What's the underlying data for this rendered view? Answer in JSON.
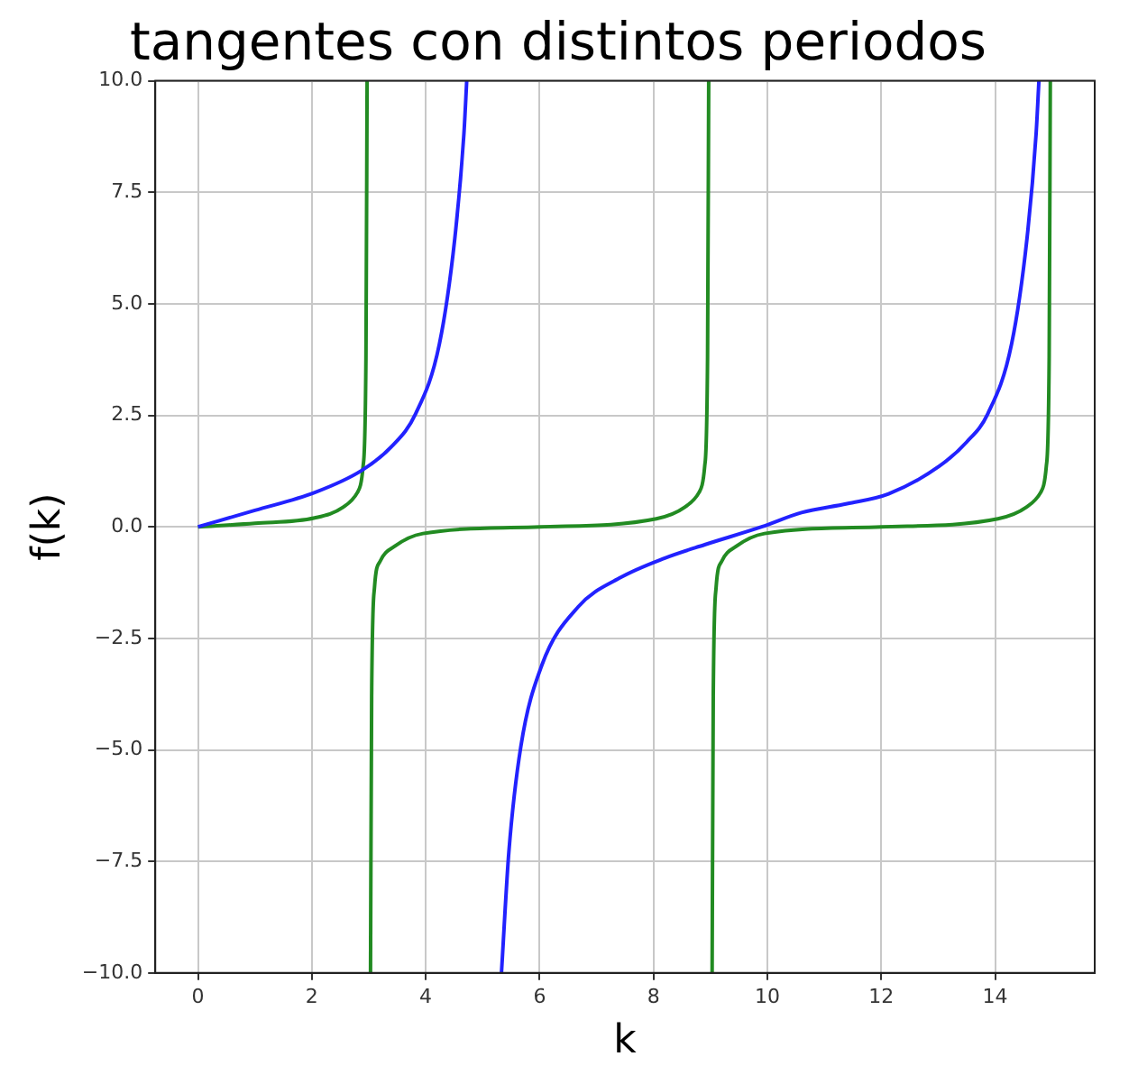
{
  "chart_data": {
    "type": "line",
    "title": "tangentes con distintos periodos",
    "xlabel": "k",
    "ylabel": "f(k)",
    "xlim": [
      -0.75,
      15.75
    ],
    "ylim": [
      -10,
      10
    ],
    "xticks": [
      0,
      2,
      4,
      6,
      8,
      10,
      12,
      14
    ],
    "yticks": [
      {
        "value": -10,
        "label": "−10.0"
      },
      {
        "value": -7.5,
        "label": "−7.5"
      },
      {
        "value": -5,
        "label": "−5.0"
      },
      {
        "value": -2.5,
        "label": "−2.5"
      },
      {
        "value": 0,
        "label": "0.0"
      },
      {
        "value": 2.5,
        "label": "2.5"
      },
      {
        "value": 5,
        "label": "5.0"
      },
      {
        "value": 7.5,
        "label": "7.5"
      },
      {
        "value": 10,
        "label": "10.0"
      }
    ],
    "grid": true,
    "legend": false,
    "marker": "none",
    "line_style": "solid",
    "series": [
      {
        "color": "#2222ff",
        "x": [
          0,
          1,
          2.05,
          2.87,
          3.4,
          3.82,
          4.24,
          4.51,
          4.67,
          4.72,
          5,
          5.33,
          5.46,
          5.67,
          6.04,
          6.68,
          7.4,
          8.2,
          8.9,
          9.9,
          10.6,
          11.4,
          12.13,
          13.02,
          13.5,
          13.87,
          14.29,
          14.56,
          14.72,
          14.77
        ],
        "values": [
          0,
          0.37,
          0.77,
          1.26,
          1.8,
          2.53,
          4.1,
          6.46,
          8.8,
          10,
          null,
          -10,
          -7.29,
          -4.93,
          -3.1,
          -1.79,
          -1.15,
          -0.7,
          -0.4,
          0,
          0.32,
          0.52,
          0.74,
          1.36,
          1.9,
          2.53,
          4.1,
          6.46,
          8.8,
          10
        ]
      },
      {
        "color": "#228b22",
        "x": [
          0,
          1,
          2.05,
          2.55,
          2.8,
          2.9,
          2.95,
          2.97,
          3,
          3.03,
          3.05,
          3.1,
          3.2,
          3.45,
          3.95,
          6,
          8.05,
          8.55,
          8.8,
          8.9,
          8.95,
          8.97,
          9,
          9.03,
          9.05,
          9.1,
          9.2,
          9.45,
          9.95,
          12,
          14.05,
          14.55,
          14.8,
          14.9,
          14.95,
          14.97
        ],
        "values": [
          0,
          0.08,
          0.2,
          0.44,
          0.77,
          1.36,
          3.8,
          10,
          null,
          -10,
          -3.8,
          -1.36,
          -0.77,
          -0.44,
          -0.15,
          0,
          0.18,
          0.44,
          0.77,
          1.36,
          3.8,
          10,
          null,
          -10,
          -3.8,
          -1.36,
          -0.77,
          -0.44,
          -0.15,
          0,
          0.18,
          0.44,
          0.77,
          1.36,
          3.8,
          10
        ]
      }
    ]
  }
}
